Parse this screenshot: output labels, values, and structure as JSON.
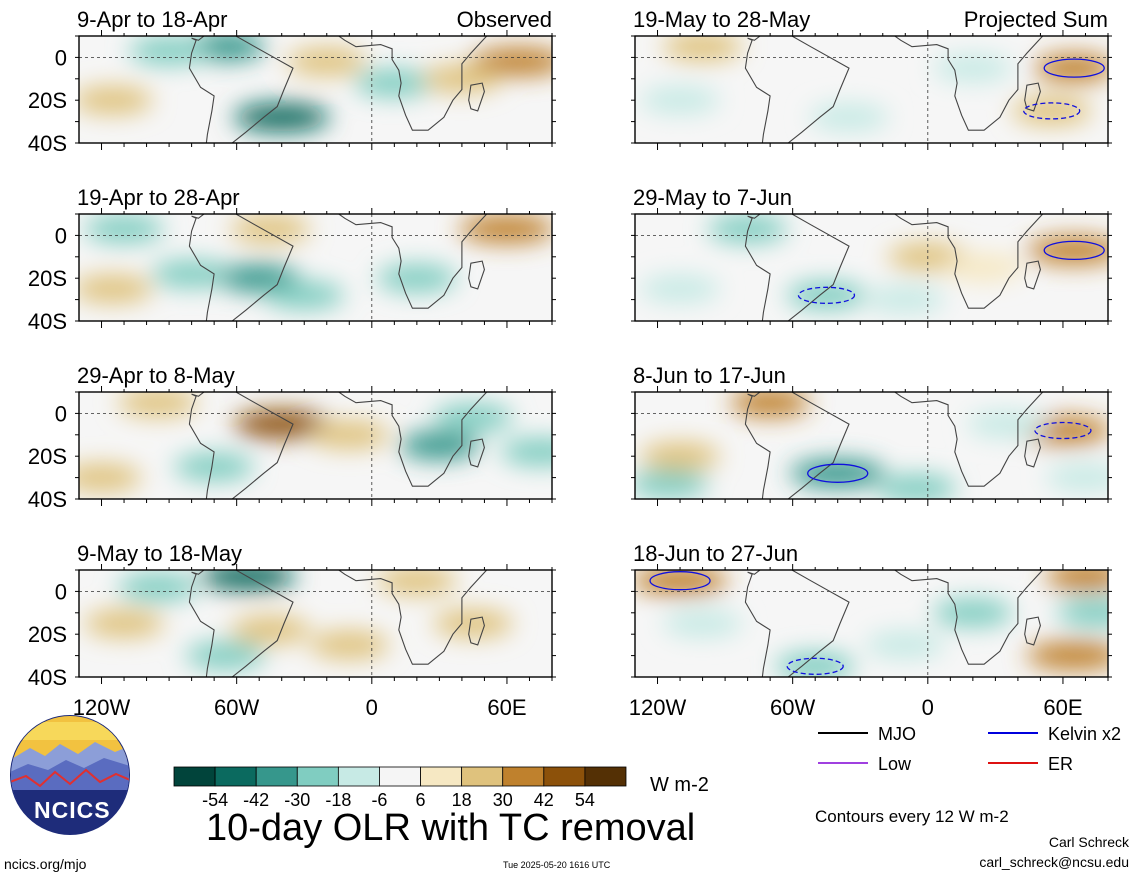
{
  "title": "10-day OLR with TC removal",
  "units": "W m-2",
  "contour_note": "Contours every 12 W m-2",
  "author": "Carl Schreck",
  "email": "carl_schreck@ncsu.edu",
  "site": "ncics.org/mjo",
  "timestamp": "Tue 2025-05-20 1616 UTC",
  "logo_text": "NCICS",
  "columns": [
    {
      "heading": "Observed",
      "panels": [
        "9-Apr to 18-Apr",
        "19-Apr to 28-Apr",
        "29-Apr to 8-May",
        "9-May to 18-May"
      ]
    },
    {
      "heading": "Projected Sum",
      "panels": [
        "19-May to 28-May",
        "29-May to 7-Jun",
        "8-Jun to 17-Jun",
        "18-Jun to 27-Jun"
      ]
    }
  ],
  "legend": [
    {
      "label": "MJO",
      "color": "#000000"
    },
    {
      "label": "Kelvin x2",
      "color": "#0000dd"
    },
    {
      "label": "Low",
      "color": "#a040e0"
    },
    {
      "label": "ER",
      "color": "#dd1111"
    }
  ],
  "colors": {
    "negative": "#2a9d8f",
    "positive": "#c98a2e",
    "contour": "#1010dd",
    "neutral_fill": "#f6f6f6"
  },
  "chart_data": {
    "type": "heatmap",
    "variable": "10-day OLR with TC removal",
    "units": "W m-2",
    "x_ticks": [
      "120W",
      "60W",
      "0",
      "60E"
    ],
    "x_tick_values": [
      -120,
      -60,
      0,
      60
    ],
    "y_ticks": [
      "0",
      "20S",
      "40S"
    ],
    "y_tick_values": [
      0,
      -20,
      -40
    ],
    "xlim": [
      -130,
      80
    ],
    "ylim": [
      -40,
      10
    ],
    "colorbar": {
      "tick_labels": [
        "-54",
        "-42",
        "-30",
        "-18",
        "-6",
        "6",
        "18",
        "30",
        "42",
        "54"
      ],
      "bins": [
        {
          "range": [
            -60,
            -54
          ],
          "color": "#01443b"
        },
        {
          "range": [
            -54,
            -42
          ],
          "color": "#0b6a5f"
        },
        {
          "range": [
            -42,
            -30
          ],
          "color": "#36978c"
        },
        {
          "range": [
            -30,
            -18
          ],
          "color": "#80cdc1"
        },
        {
          "range": [
            -18,
            -6
          ],
          "color": "#c7eae5"
        },
        {
          "range": [
            -6,
            6
          ],
          "color": "#f5f5f5"
        },
        {
          "range": [
            6,
            18
          ],
          "color": "#f6e8c3"
        },
        {
          "range": [
            18,
            30
          ],
          "color": "#dfc27d"
        },
        {
          "range": [
            30,
            42
          ],
          "color": "#bf812d"
        },
        {
          "range": [
            42,
            54
          ],
          "color": "#8c510a"
        },
        {
          "range": [
            54,
            60
          ],
          "color": "#543005"
        }
      ]
    },
    "panels": [
      {
        "label": "9-Apr to 18-Apr",
        "group": "Observed",
        "anomalies": [
          {
            "lon": -65,
            "lat": 5,
            "value": -35
          },
          {
            "lon": -40,
            "lat": -28,
            "value": -45
          },
          {
            "lon": 65,
            "lat": -2,
            "value": 38
          },
          {
            "lon": -115,
            "lat": -20,
            "value": 22
          },
          {
            "lon": 10,
            "lat": -12,
            "value": -20
          },
          {
            "lon": 40,
            "lat": -10,
            "value": 20
          },
          {
            "lon": -90,
            "lat": 3,
            "value": -30
          },
          {
            "lon": -20,
            "lat": -2,
            "value": 18
          }
        ]
      },
      {
        "label": "19-Apr to 28-Apr",
        "group": "Observed",
        "anomalies": [
          {
            "lon": -110,
            "lat": 3,
            "value": -30
          },
          {
            "lon": -80,
            "lat": -18,
            "value": -30
          },
          {
            "lon": -50,
            "lat": -20,
            "value": -35
          },
          {
            "lon": 60,
            "lat": 3,
            "value": 38
          },
          {
            "lon": -30,
            "lat": -28,
            "value": -22
          },
          {
            "lon": 20,
            "lat": -20,
            "value": -25
          },
          {
            "lon": -115,
            "lat": -25,
            "value": 18
          },
          {
            "lon": -45,
            "lat": 3,
            "value": 18
          }
        ]
      },
      {
        "label": "29-Apr to 8-May",
        "group": "Observed",
        "anomalies": [
          {
            "lon": -40,
            "lat": -5,
            "value": 42
          },
          {
            "lon": 30,
            "lat": -15,
            "value": -32
          },
          {
            "lon": -70,
            "lat": -25,
            "value": -22
          },
          {
            "lon": 75,
            "lat": -18,
            "value": -30
          },
          {
            "lon": -120,
            "lat": -30,
            "value": 18
          },
          {
            "lon": -95,
            "lat": 5,
            "value": 18
          },
          {
            "lon": 45,
            "lat": -2,
            "value": -25
          },
          {
            "lon": -10,
            "lat": -10,
            "value": 18
          }
        ]
      },
      {
        "label": "9-May to 18-May",
        "group": "Observed",
        "anomalies": [
          {
            "lon": -55,
            "lat": 7,
            "value": -45
          },
          {
            "lon": -45,
            "lat": -18,
            "value": 22
          },
          {
            "lon": -110,
            "lat": -15,
            "value": 18
          },
          {
            "lon": 20,
            "lat": 5,
            "value": 18
          },
          {
            "lon": -65,
            "lat": -30,
            "value": -20
          },
          {
            "lon": -95,
            "lat": 2,
            "value": -20
          },
          {
            "lon": 45,
            "lat": -15,
            "value": 20
          },
          {
            "lon": -10,
            "lat": -25,
            "value": 18
          }
        ]
      },
      {
        "label": "19-May to 28-May",
        "group": "Projected Sum",
        "anomalies": [
          {
            "lon": 65,
            "lat": -5,
            "value": 30
          },
          {
            "lon": 55,
            "lat": -25,
            "value": 20
          },
          {
            "lon": -110,
            "lat": -20,
            "value": -12
          },
          {
            "lon": -35,
            "lat": -28,
            "value": -12
          },
          {
            "lon": -100,
            "lat": 5,
            "value": 18
          },
          {
            "lon": 20,
            "lat": -5,
            "value": -10
          }
        ]
      },
      {
        "label": "29-May to 7-Jun",
        "group": "Projected Sum",
        "anomalies": [
          {
            "lon": 65,
            "lat": -7,
            "value": 40
          },
          {
            "lon": -45,
            "lat": -28,
            "value": -22
          },
          {
            "lon": -110,
            "lat": -25,
            "value": -18
          },
          {
            "lon": -80,
            "lat": 3,
            "value": -22
          },
          {
            "lon": 0,
            "lat": -10,
            "value": 18
          },
          {
            "lon": -10,
            "lat": -30,
            "value": -15
          },
          {
            "lon": 25,
            "lat": -15,
            "value": 15
          }
        ]
      },
      {
        "label": "8-Jun to 17-Jun",
        "group": "Projected Sum",
        "anomalies": [
          {
            "lon": -40,
            "lat": -28,
            "value": -38
          },
          {
            "lon": 60,
            "lat": -8,
            "value": 38
          },
          {
            "lon": -110,
            "lat": -20,
            "value": 22
          },
          {
            "lon": -70,
            "lat": 5,
            "value": 30
          },
          {
            "lon": -115,
            "lat": -33,
            "value": -20
          },
          {
            "lon": 35,
            "lat": -5,
            "value": -15
          },
          {
            "lon": 70,
            "lat": -30,
            "value": -15
          },
          {
            "lon": -5,
            "lat": -35,
            "value": -20
          }
        ]
      },
      {
        "label": "18-Jun to 27-Jun",
        "group": "Projected Sum",
        "anomalies": [
          {
            "lon": -110,
            "lat": 5,
            "value": 36
          },
          {
            "lon": -50,
            "lat": -35,
            "value": -30
          },
          {
            "lon": 65,
            "lat": -30,
            "value": 38
          },
          {
            "lon": 70,
            "lat": 7,
            "value": 32
          },
          {
            "lon": 20,
            "lat": -10,
            "value": -22
          },
          {
            "lon": -100,
            "lat": -15,
            "value": -15
          },
          {
            "lon": -10,
            "lat": -25,
            "value": -12
          },
          {
            "lon": 75,
            "lat": -10,
            "value": -22
          }
        ]
      }
    ]
  }
}
